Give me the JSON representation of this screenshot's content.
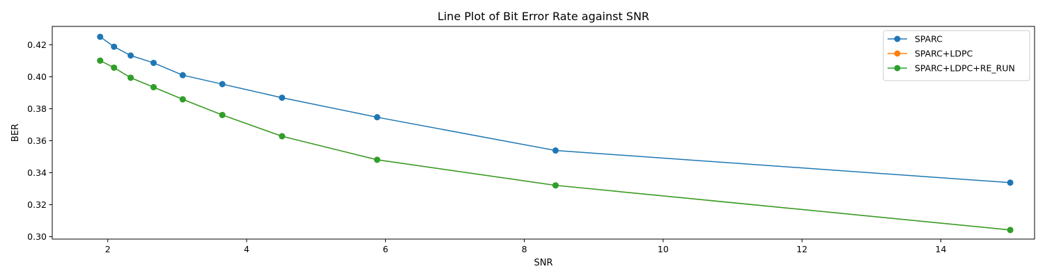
{
  "chart_data": {
    "type": "line",
    "title": "Line Plot of Bit Error Rate against SNR",
    "xlabel": "SNR",
    "ylabel": "BER",
    "xlim": [
      1.2,
      15.35
    ],
    "ylim": [
      0.2985,
      0.4315
    ],
    "xticks": [
      2,
      4,
      6,
      8,
      10,
      12,
      14
    ],
    "yticks": [
      0.3,
      0.32,
      0.34,
      0.36,
      0.38,
      0.4,
      0.42
    ],
    "ytick_decimals": 2,
    "grid": false,
    "legend_position": "top-right",
    "x": [
      1.89,
      2.09,
      2.33,
      2.66,
      3.08,
      3.65,
      4.51,
      5.88,
      8.45,
      15.0
    ],
    "series": [
      {
        "name": "SPARC",
        "color": "#1f77b4",
        "values": [
          0.425,
          0.4188,
          0.4133,
          0.4087,
          0.401,
          0.3954,
          0.3869,
          0.3747,
          0.3539,
          0.3338
        ]
      },
      {
        "name": "SPARC+LDPC",
        "color": "#ff7f0e",
        "values": [
          0.4101,
          0.4057,
          0.3994,
          0.3935,
          0.3859,
          0.3761,
          0.3628,
          0.3481,
          0.3321,
          0.3042
        ]
      },
      {
        "name": "SPARC+LDPC+RE_RUN",
        "color": "#2ca02c",
        "values": [
          0.4101,
          0.4057,
          0.3994,
          0.3935,
          0.3859,
          0.3761,
          0.3628,
          0.3481,
          0.3321,
          0.3042
        ]
      }
    ]
  }
}
